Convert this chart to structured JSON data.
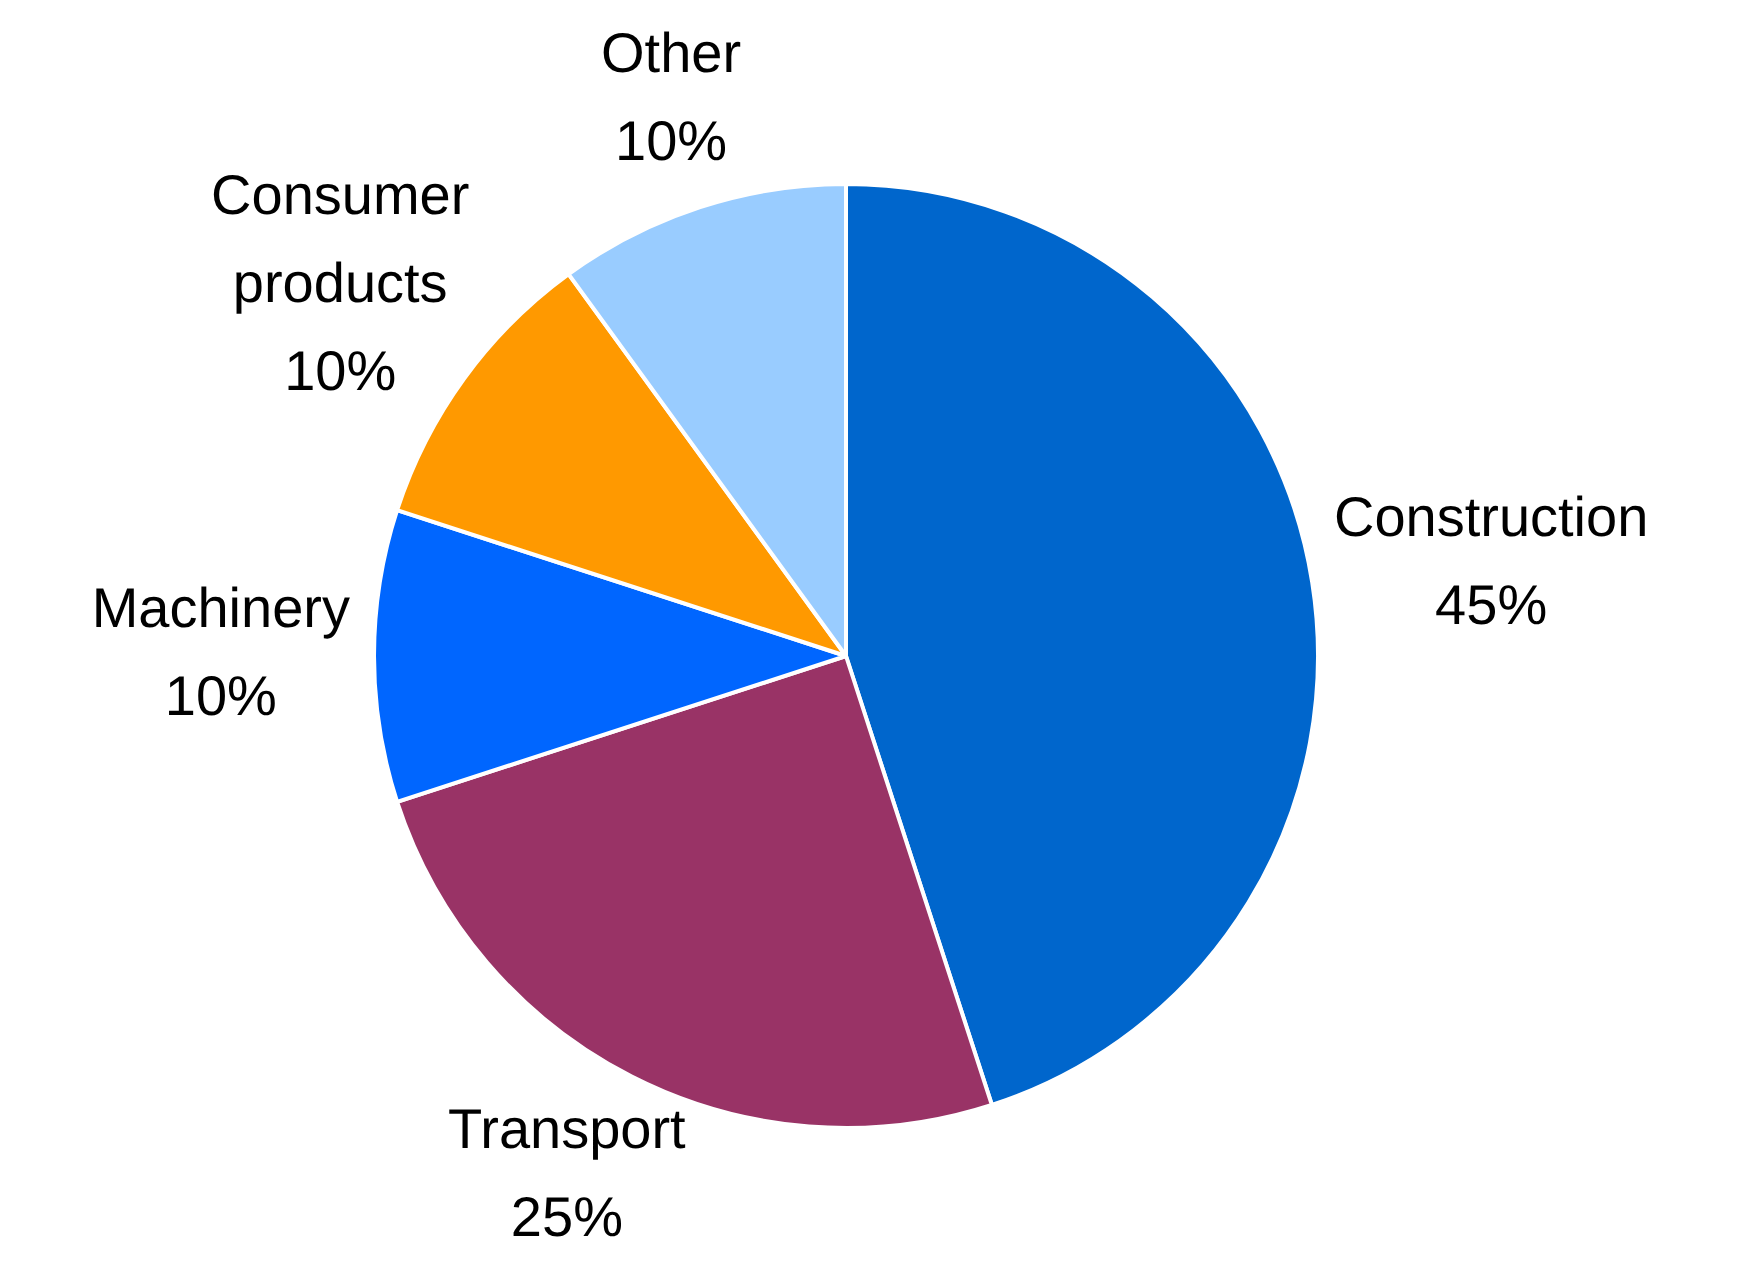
{
  "chart_data": {
    "type": "pie",
    "categories": [
      "Construction",
      "Transport",
      "Machinery",
      "Consumer products",
      "Other"
    ],
    "values": [
      45,
      25,
      10,
      10,
      10
    ],
    "colors": [
      "#0066cc",
      "#993366",
      "#0066ff",
      "#ff9900",
      "#99ccff"
    ],
    "value_labels": [
      "45%",
      "25%",
      "10%",
      "10%",
      "10%"
    ],
    "legend": false
  }
}
